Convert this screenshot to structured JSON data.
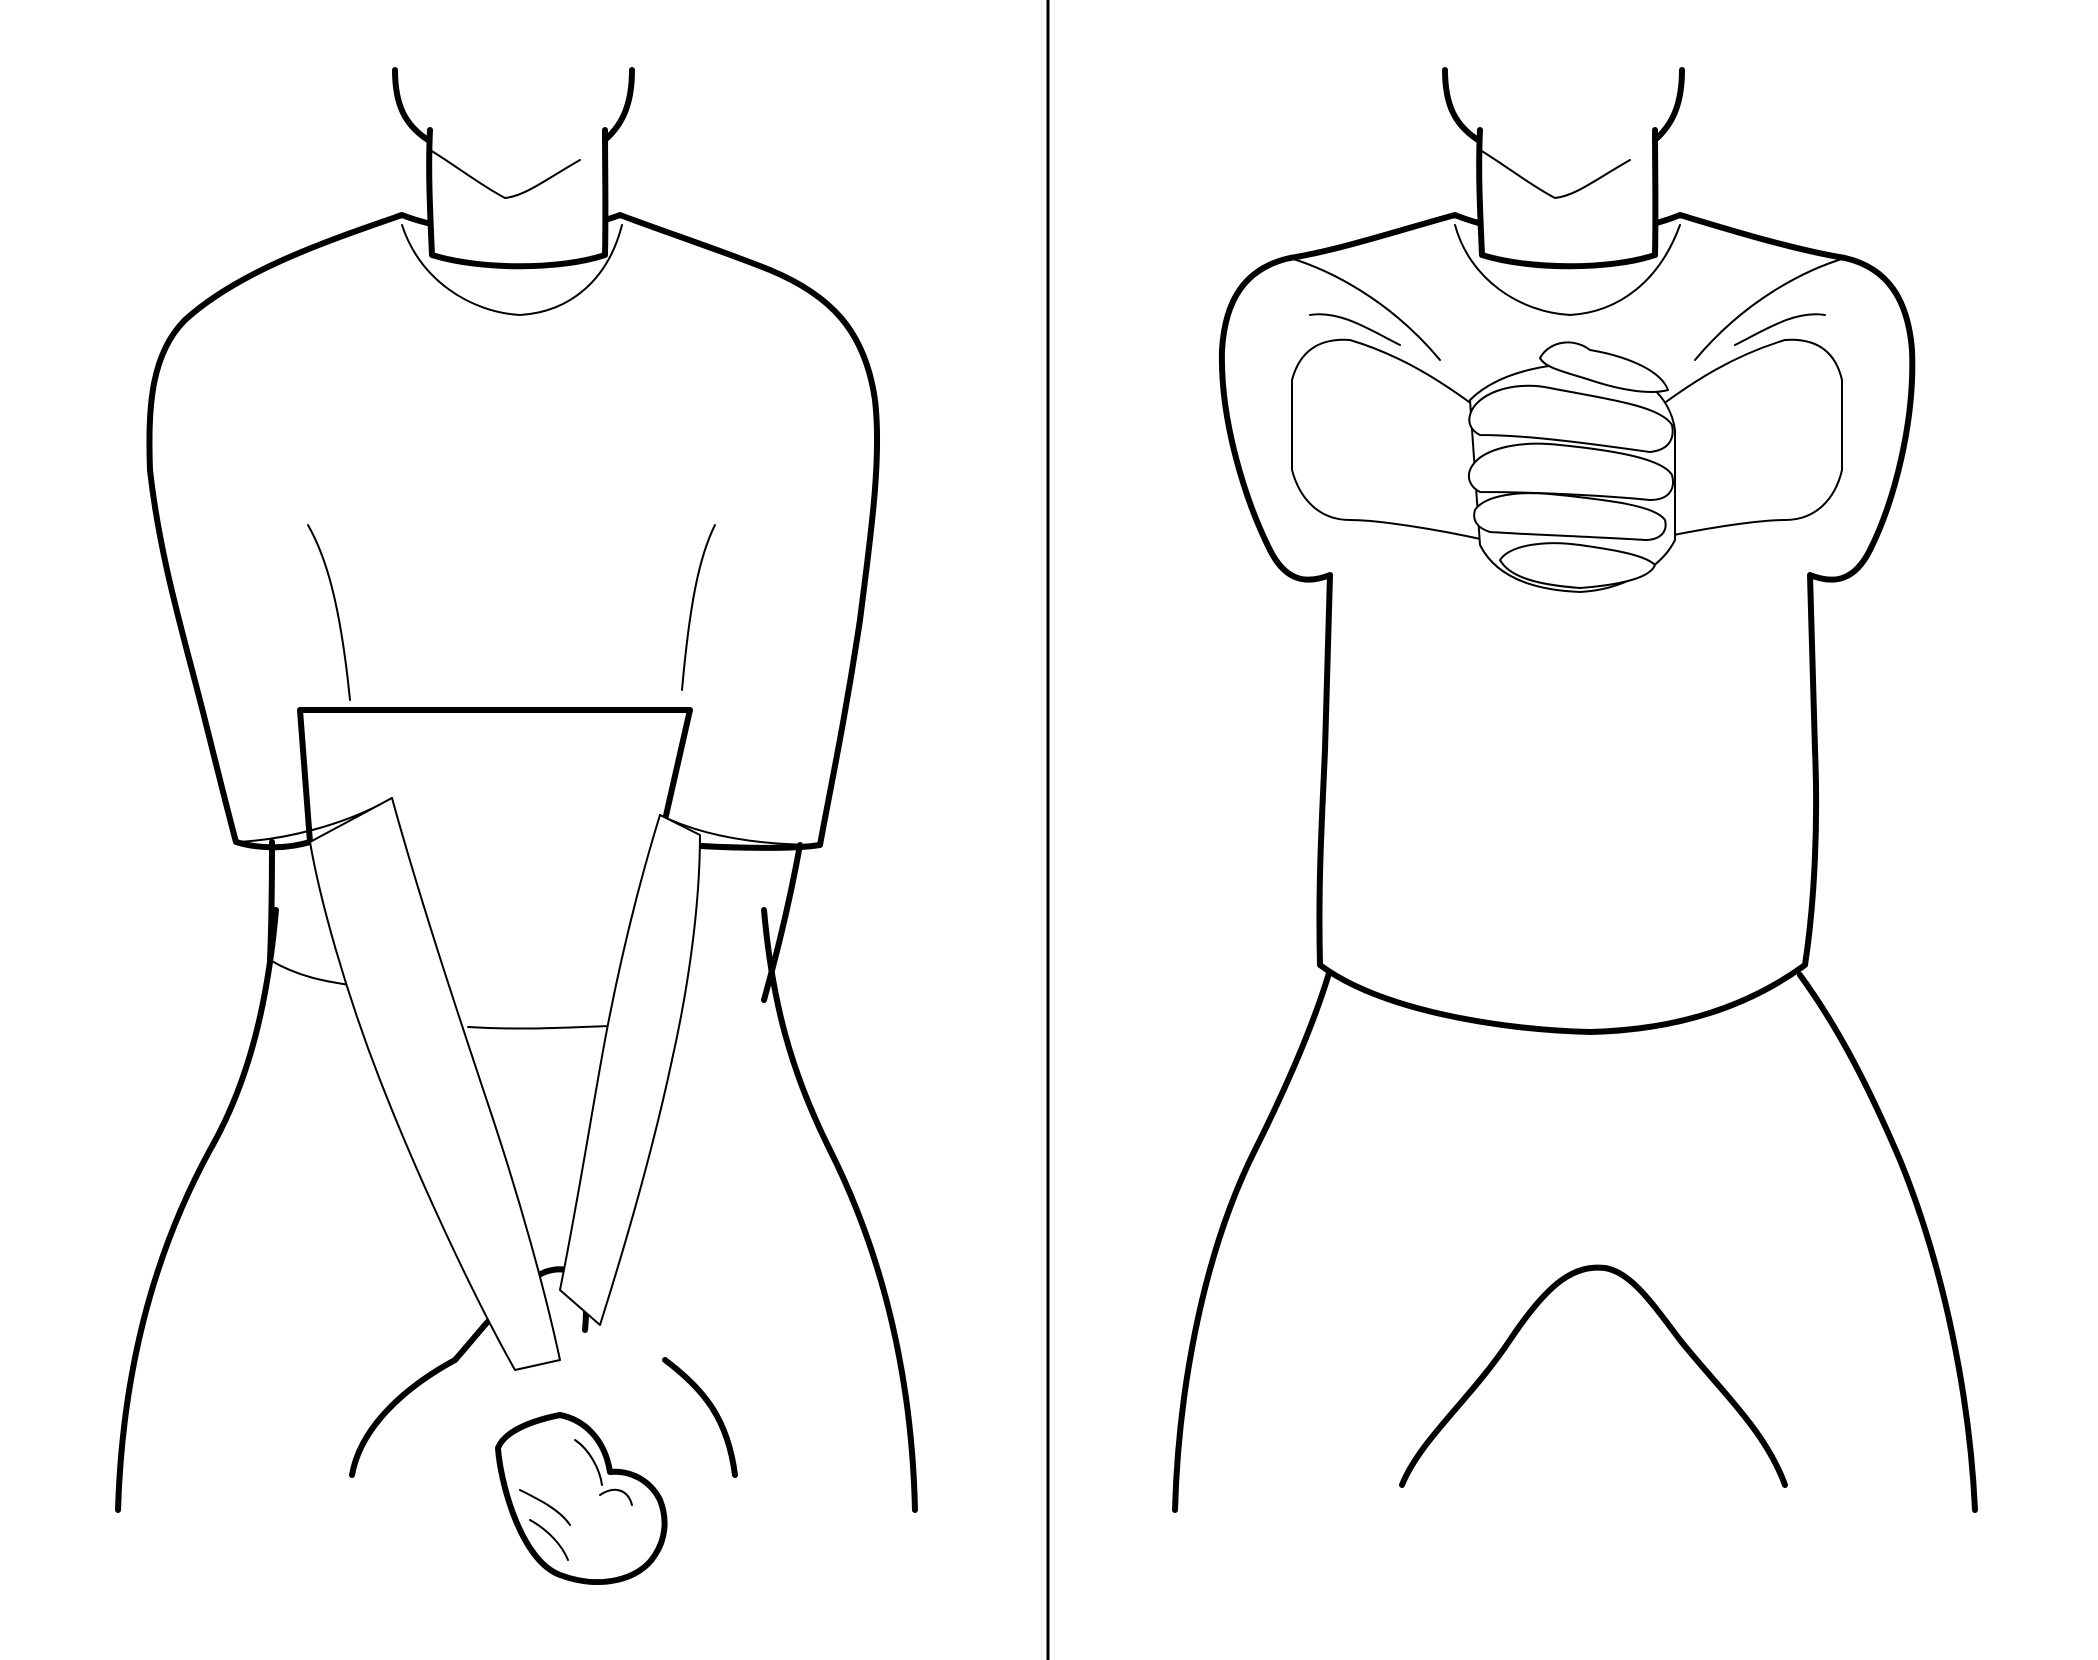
{
  "figure": {
    "panels": [
      {
        "id": "left",
        "pose": "hands-clasped-low"
      },
      {
        "id": "right",
        "pose": "hands-clasped-chest"
      }
    ]
  },
  "colors": {
    "line": "#000000",
    "background": "#ffffff"
  }
}
